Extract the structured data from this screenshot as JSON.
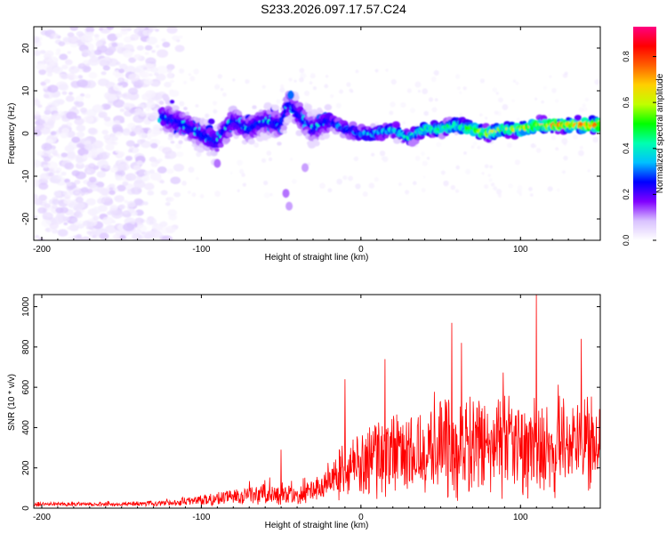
{
  "chart_data": [
    {
      "type": "heatmap",
      "title": "S233.2026.097.17.57.C24",
      "xlabel": "Height of straight line (km)",
      "ylabel": "Frequency (Hz)",
      "xlim": [
        -205,
        150
      ],
      "ylim": [
        -25,
        25
      ],
      "xticks": [
        -200,
        -100,
        0,
        100
      ],
      "yticks": [
        -20,
        -10,
        0,
        10,
        20
      ],
      "colorbar": {
        "label": "Normalized spectral amplitude",
        "range": [
          0,
          0.93
        ],
        "ticks": [
          0.0,
          0.2,
          0.4,
          0.6,
          0.8
        ],
        "colors": [
          "#ffffff",
          "#d9c2ff",
          "#8000ff",
          "#0000ff",
          "#00c0ff",
          "#00ffb0",
          "#00ff00",
          "#c0ff00",
          "#ffd000",
          "#ff6000",
          "#ff0000",
          "#ff0080"
        ]
      },
      "ridge": {
        "note": "dominant frequency track (Hz) vs height (km)",
        "x": [
          -125,
          -110,
          -100,
          -90,
          -80,
          -70,
          -60,
          -50,
          -45,
          -40,
          -35,
          -30,
          -20,
          -10,
          0,
          10,
          20,
          30,
          40,
          50,
          60,
          70,
          80,
          90,
          100,
          110,
          120,
          130,
          140,
          150
        ],
        "y": [
          4,
          2,
          0,
          -2,
          3,
          1,
          3,
          2,
          7,
          5,
          3,
          1,
          3,
          1,
          0,
          0,
          1,
          -1,
          1,
          1,
          2,
          1,
          0,
          1,
          1,
          2,
          2,
          2,
          2,
          2
        ]
      }
    },
    {
      "type": "line",
      "xlabel": "Height of straight line (km)",
      "ylabel": "SNR (10 * v/v)",
      "xlim": [
        -205,
        150
      ],
      "ylim": [
        0,
        1060
      ],
      "xticks": [
        -200,
        -100,
        0,
        100
      ],
      "yticks": [
        0,
        200,
        400,
        600,
        800,
        1000
      ],
      "color": "#ff0000",
      "envelope": {
        "note": "approximate running level of the SNR trace",
        "x": [
          -205,
          -150,
          -120,
          -100,
          -80,
          -60,
          -40,
          -30,
          -20,
          -10,
          0,
          20,
          40,
          60,
          80,
          100,
          120,
          150
        ],
        "mean": [
          20,
          20,
          25,
          40,
          60,
          70,
          60,
          80,
          150,
          200,
          230,
          270,
          300,
          300,
          310,
          300,
          320,
          330
        ],
        "spread": [
          10,
          10,
          15,
          25,
          40,
          50,
          50,
          60,
          100,
          140,
          170,
          200,
          220,
          240,
          240,
          240,
          250,
          230
        ]
      },
      "peaks": [
        {
          "x": -50,
          "y": 290
        },
        {
          "x": -10,
          "y": 640
        },
        {
          "x": 15,
          "y": 740
        },
        {
          "x": 57,
          "y": 920
        },
        {
          "x": 63,
          "y": 820
        },
        {
          "x": 110,
          "y": 1060
        },
        {
          "x": 138,
          "y": 840
        }
      ]
    }
  ]
}
